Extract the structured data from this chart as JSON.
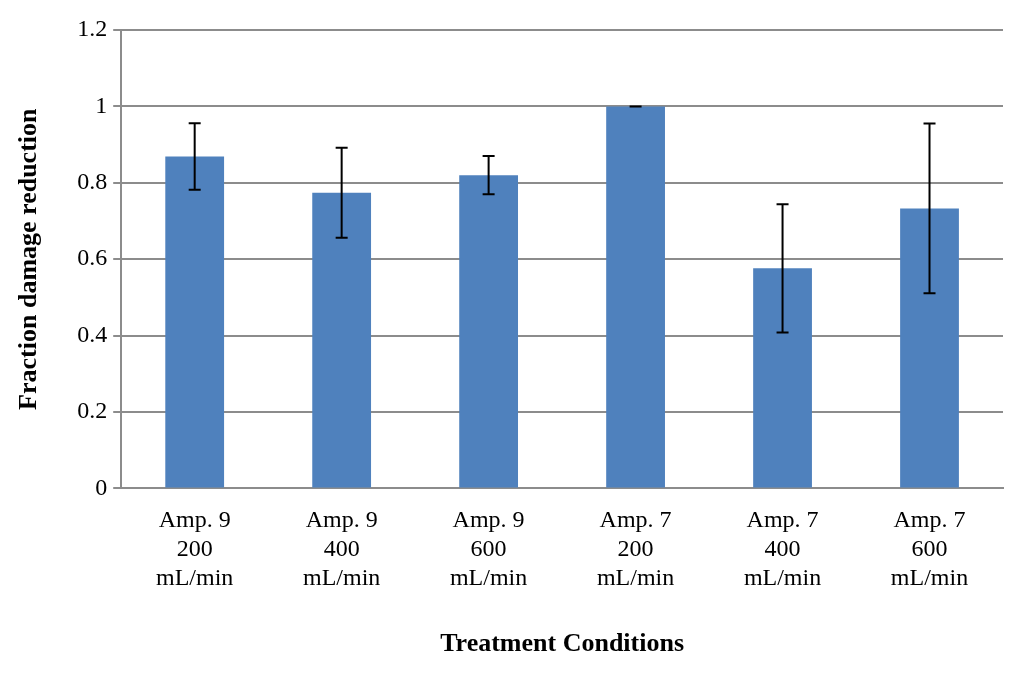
{
  "chart_data": {
    "type": "bar",
    "xlabel": "Treatment Conditions",
    "ylabel": "Fraction damage reduction",
    "categories": [
      "Amp. 9 200 mL/min",
      "Amp. 9 400 mL/min",
      "Amp. 9 600 mL/min",
      "Amp. 7 200 mL/min",
      "Amp. 7 400 mL/min",
      "Amp. 7 600 mL/min"
    ],
    "values": [
      0.869,
      0.774,
      0.82,
      1.0,
      0.576,
      0.733
    ],
    "errors": [
      0.087,
      0.118,
      0.05,
      0,
      0.168,
      0.222
    ],
    "color": "#4f81bd",
    "ylim": [
      0,
      1.2
    ],
    "yticks": [
      0,
      0.2,
      0.4,
      0.6,
      0.8,
      1,
      1.2
    ],
    "grid": "y"
  }
}
